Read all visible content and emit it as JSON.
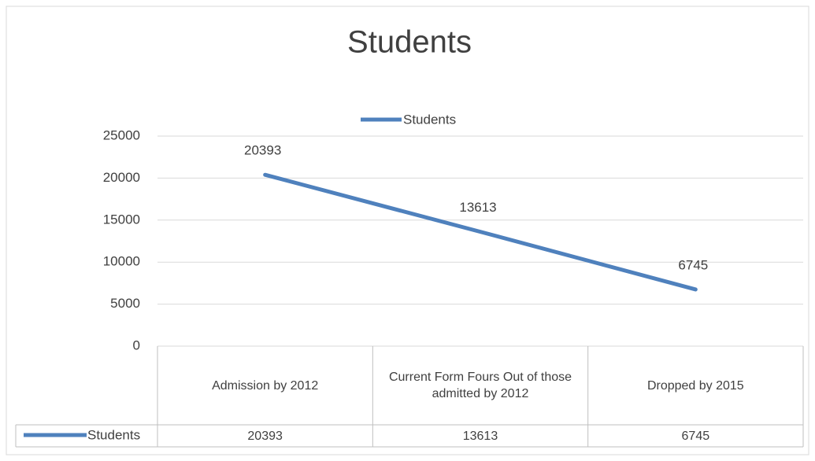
{
  "chart_data": {
    "type": "line",
    "title": "Students",
    "categories": [
      "Admission by 2012",
      "Current Form Fours Out of those admitted by 2012",
      "Dropped by 2015"
    ],
    "series": [
      {
        "name": "Students",
        "color": "#4f81bd",
        "values": [
          20393,
          13613,
          6745
        ]
      }
    ],
    "ylim": [
      0,
      25000
    ],
    "yticks": [
      0,
      5000,
      10000,
      15000,
      20000,
      25000
    ],
    "grid": true,
    "legend": "top",
    "data_labels": true,
    "data_table": true
  }
}
